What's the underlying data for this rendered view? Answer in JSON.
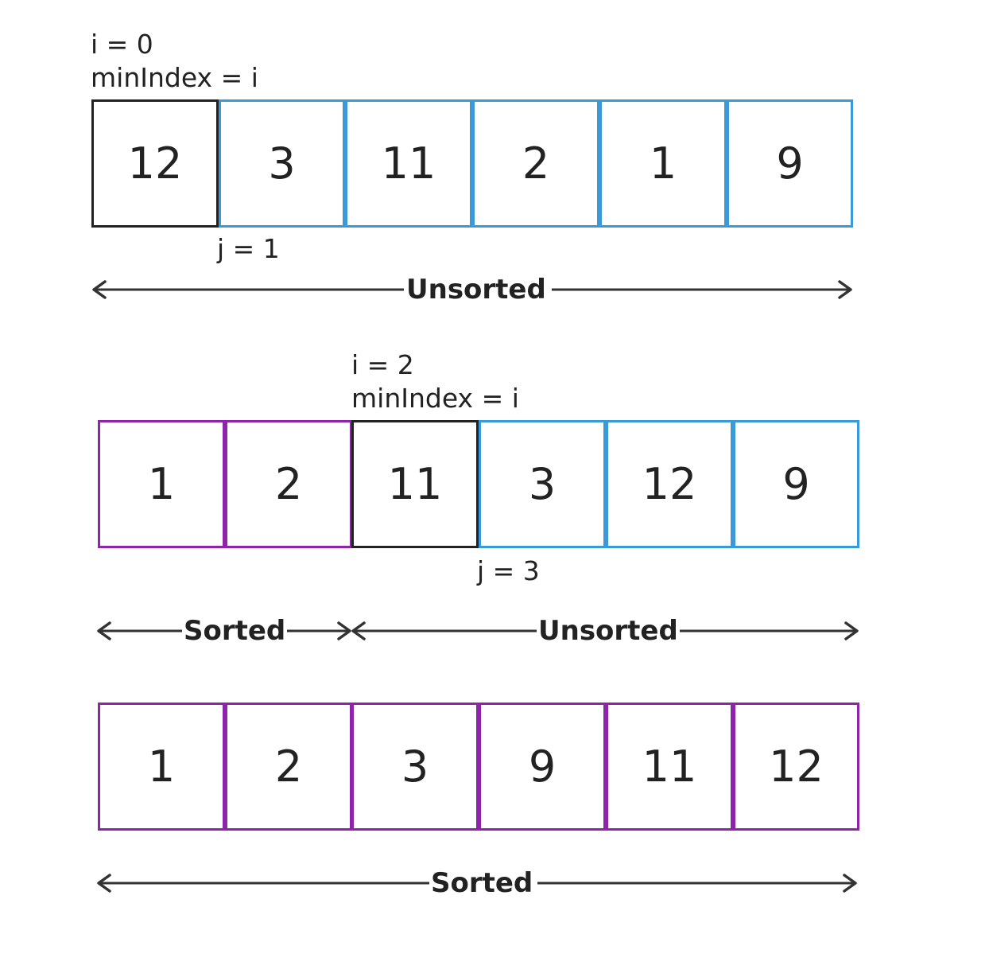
{
  "colors": {
    "current": "#222222",
    "sorted": "#8e24aa",
    "unsorted": "#3a9ad9",
    "text": "#222222",
    "arrow": "#333333"
  },
  "step1": {
    "i_label": "i = 0",
    "min_label": "minIndex = i",
    "j_label": "j = 1",
    "cells": [
      "12",
      "3",
      "11",
      "2",
      "1",
      "9"
    ],
    "range_unsorted": "Unsorted"
  },
  "step2": {
    "i_label": "i = 2",
    "min_label": "minIndex = i",
    "j_label": "j = 3",
    "cells": [
      "1",
      "2",
      "11",
      "3",
      "12",
      "9"
    ],
    "range_sorted": "Sorted",
    "range_unsorted": "Unsorted"
  },
  "step3": {
    "cells": [
      "1",
      "2",
      "3",
      "9",
      "11",
      "12"
    ],
    "range_sorted": "Sorted"
  }
}
